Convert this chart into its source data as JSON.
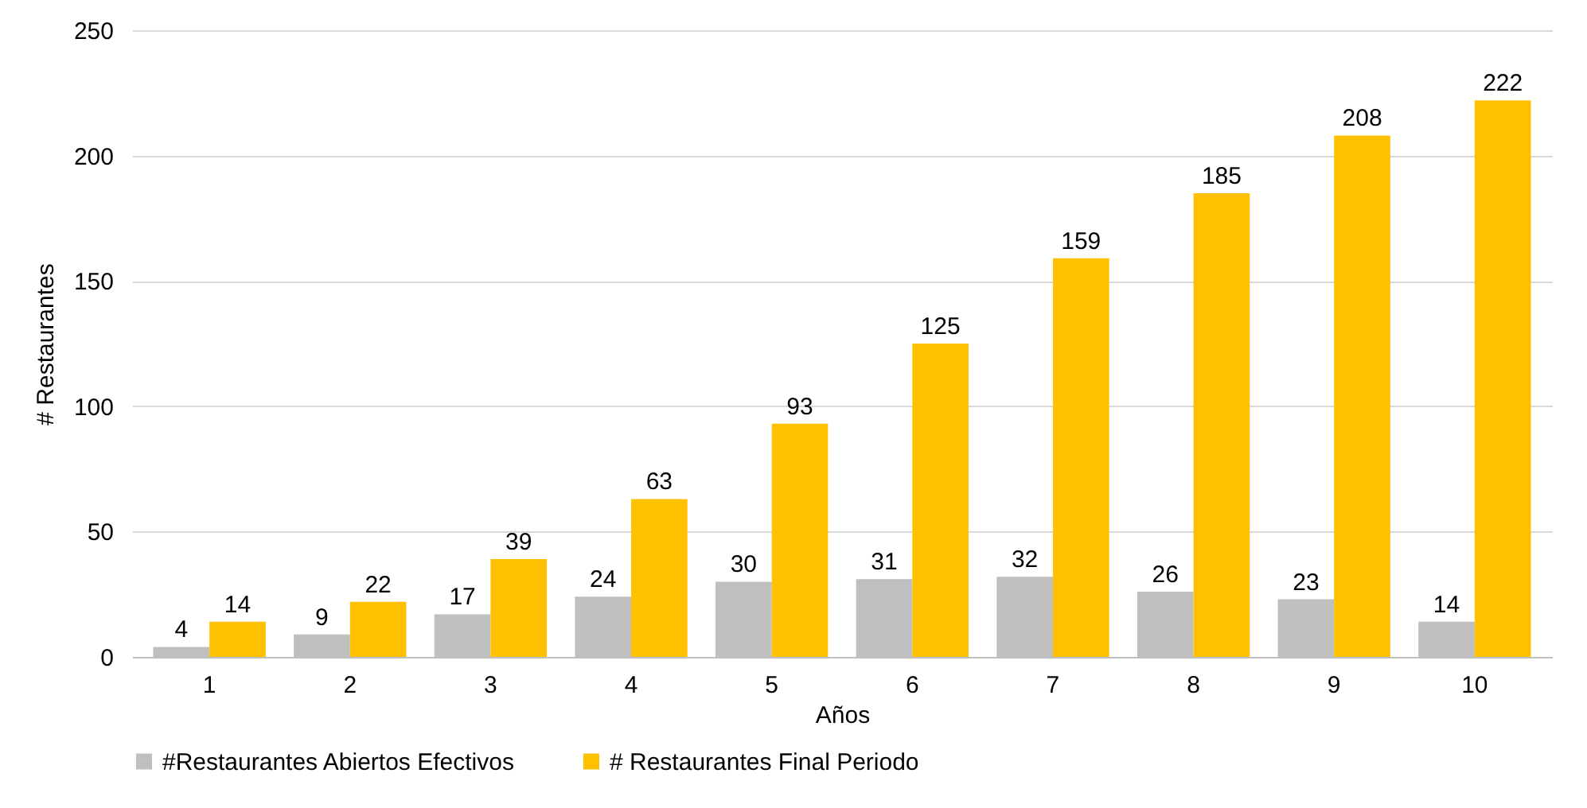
{
  "chart_data": {
    "type": "bar",
    "xlabel": "Años",
    "ylabel": "# Restaurantes",
    "categories": [
      "1",
      "2",
      "3",
      "4",
      "5",
      "6",
      "7",
      "8",
      "9",
      "10"
    ],
    "series": [
      {
        "name": "#Restaurantes Abiertos Efectivos",
        "color": "#bfbfbf",
        "values": [
          4,
          9,
          17,
          24,
          30,
          31,
          32,
          26,
          23,
          14
        ]
      },
      {
        "name": "# Restaurantes Final Periodo",
        "color": "#ffc000",
        "values": [
          14,
          22,
          39,
          63,
          93,
          125,
          159,
          185,
          208,
          222
        ]
      }
    ],
    "ylim": [
      0,
      250
    ],
    "yticks": [
      0,
      50,
      100,
      150,
      200,
      250
    ],
    "grid": "y",
    "legend": "bottom",
    "data_labels": true
  }
}
